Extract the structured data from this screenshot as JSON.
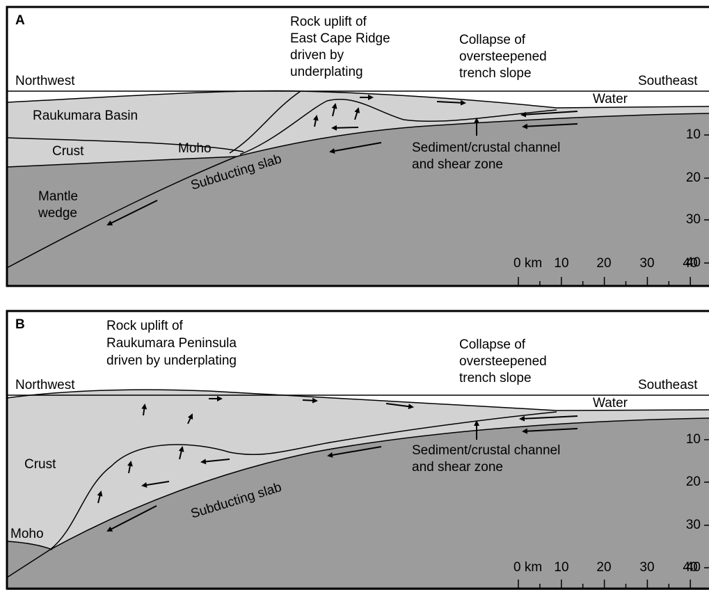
{
  "panels": [
    {
      "letter": "A",
      "uplift_note": [
        "Rock uplift of",
        "East Cape Ridge",
        "driven by",
        "underplating"
      ],
      "collapse_note": [
        "Collapse of",
        "oversteepened",
        "trench slope"
      ],
      "northwest": "Northwest",
      "southeast": "Southeast",
      "water": "Water",
      "basin": "Raukumara Basin",
      "crust": "Crust",
      "moho": "Moho",
      "slab": "Subducting slab",
      "mantle_wedge": [
        "Mantle",
        "wedge"
      ],
      "channel_note": [
        "Sediment/crustal channel",
        "and shear zone"
      ],
      "depth_ticks": [
        "10",
        "20",
        "30",
        "40"
      ],
      "scale_labels": [
        "0 km",
        "10",
        "20",
        "30",
        "40"
      ]
    },
    {
      "letter": "B",
      "uplift_note": [
        "Rock uplift of",
        "Raukumara Peninsula",
        "driven by underplating"
      ],
      "collapse_note": [
        "Collapse of",
        "oversteepened",
        "trench slope"
      ],
      "northwest": "Northwest",
      "southeast": "Southeast",
      "water": "Water",
      "crust": "Crust",
      "moho": "Moho",
      "slab": "Subducting slab",
      "channel_note": [
        "Sediment/crustal channel",
        "and shear zone"
      ],
      "depth_ticks": [
        "10",
        "20",
        "30",
        "40"
      ],
      "scale_labels": [
        "0 km",
        "10",
        "20",
        "30",
        "40"
      ]
    }
  ]
}
